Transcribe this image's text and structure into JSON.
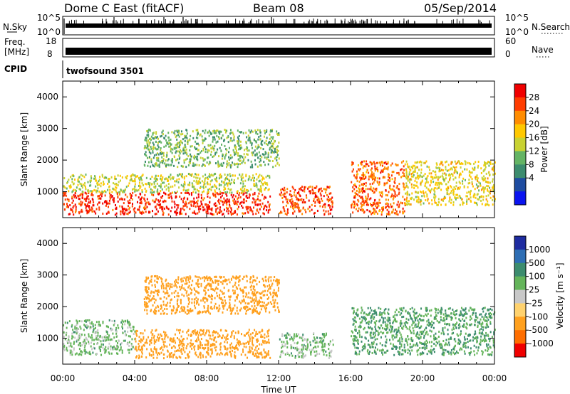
{
  "header": {
    "radar": "Dome C East (fitACF)",
    "beam": "Beam 08",
    "date": "05/Sep/2014"
  },
  "panels": {
    "nsky": {
      "left_label": "N.Sky",
      "left_ticks": [
        "10^5",
        "10^0"
      ],
      "right_label": "N.Search",
      "right_ticks": [
        "10^5",
        "10^0"
      ]
    },
    "freq": {
      "left_label_1": "Freq.",
      "left_label_2": "[MHz]",
      "left_ticks": [
        "18",
        "8"
      ],
      "right_label": "Nave",
      "right_ticks": [
        "60",
        "0"
      ]
    },
    "cpid": {
      "label": "CPID",
      "value": "twofsound 3501"
    }
  },
  "power_colorbar": {
    "label": "Power [dB]",
    "ticks": [
      "28",
      "24",
      "20",
      "16",
      "12",
      "8",
      "4"
    ],
    "colors": [
      "#f00000",
      "#ff3c00",
      "#ff8c00",
      "#ffc800",
      "#c8d232",
      "#64b464",
      "#3c8c6e",
      "#1e4ca0",
      "#0a14f0"
    ]
  },
  "velocity_colorbar": {
    "label": "Velocity [m s⁻¹]",
    "ticks": [
      "1000",
      "500",
      "100",
      "25",
      "-25",
      "-100",
      "-500",
      "-1000"
    ],
    "colors": [
      "#1e2ca0",
      "#2e6eb4",
      "#3c8c6e",
      "#64b45a",
      "#c8c8c8",
      "#ffd26e",
      "#ffa01e",
      "#ff6e00",
      "#f00000"
    ]
  },
  "chart_data": [
    {
      "type": "heatmap",
      "title": "",
      "ylabel": "Slant Range [km]",
      "xlabel": "",
      "x_tick_labels": [
        "00:00",
        "04:00",
        "08:00",
        "12:00",
        "16:00",
        "20:00",
        "00:00"
      ],
      "y_ticks": [
        1000,
        2000,
        3000,
        4000
      ],
      "xlim_hours": [
        0,
        24
      ],
      "ylim_km": [
        180,
        4500
      ],
      "quantity": "Power [dB]",
      "regions": [
        {
          "x": [
            0.0,
            11.5
          ],
          "y": [
            300,
            1000
          ],
          "value": 28
        },
        {
          "x": [
            0.0,
            11.5
          ],
          "y": [
            1000,
            1600
          ],
          "value": 14
        },
        {
          "x": [
            4.5,
            12.0
          ],
          "y": [
            1800,
            3000
          ],
          "value": 10
        },
        {
          "x": [
            12.0,
            15.0
          ],
          "y": [
            300,
            1200
          ],
          "value": 26
        },
        {
          "x": [
            16.0,
            19.0
          ],
          "y": [
            300,
            2000
          ],
          "value": 24
        },
        {
          "x": [
            19.0,
            24.0
          ],
          "y": [
            600,
            2000
          ],
          "value": 16
        }
      ]
    },
    {
      "type": "heatmap",
      "title": "",
      "ylabel": "Slant Range [km]",
      "xlabel": "Time UT",
      "x_tick_labels": [
        "00:00",
        "04:00",
        "08:00",
        "12:00",
        "16:00",
        "20:00",
        "00:00"
      ],
      "y_ticks": [
        1000,
        2000,
        3000,
        4000
      ],
      "xlim_hours": [
        0,
        24
      ],
      "ylim_km": [
        180,
        4500
      ],
      "quantity": "Velocity [m s⁻¹]",
      "regions": [
        {
          "x": [
            0.0,
            4.0
          ],
          "y": [
            500,
            1600
          ],
          "value": 50
        },
        {
          "x": [
            4.0,
            11.5
          ],
          "y": [
            400,
            1300
          ],
          "value": -200
        },
        {
          "x": [
            4.5,
            12.0
          ],
          "y": [
            1800,
            3000
          ],
          "value": -200
        },
        {
          "x": [
            12.0,
            15.0
          ],
          "y": [
            400,
            1200
          ],
          "value": 50
        },
        {
          "x": [
            16.0,
            24.0
          ],
          "y": [
            500,
            2000
          ],
          "value": 100
        }
      ]
    }
  ]
}
